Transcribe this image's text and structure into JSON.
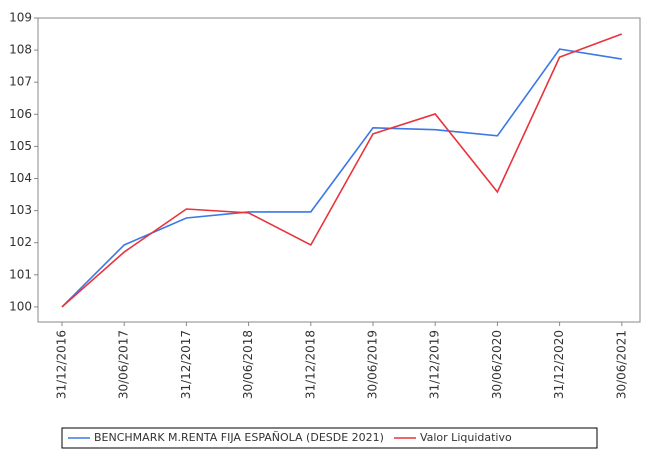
{
  "chart_data": {
    "type": "line",
    "categories": [
      "31/12/2016",
      "30/06/2017",
      "31/12/2017",
      "30/06/2018",
      "31/12/2018",
      "30/06/2019",
      "31/12/2019",
      "30/06/2020",
      "31/12/2020",
      "30/06/2021"
    ],
    "series": [
      {
        "name": "BENCHMARK M.RENTA FIJA ESPAÑOLA (DESDE 2021)",
        "color": "#3c78e6",
        "values": [
          100,
          101.93,
          102.77,
          102.96,
          102.96,
          105.58,
          105.52,
          105.33,
          108.03,
          107.72
        ]
      },
      {
        "name": "Valor Liquidativo",
        "color": "#e8323c",
        "values": [
          100,
          101.71,
          103.05,
          102.93,
          101.93,
          105.39,
          106.01,
          103.58,
          107.78,
          108.5
        ]
      }
    ],
    "ylim": [
      99.53,
      109
    ],
    "yticks": [
      100,
      101,
      102,
      103,
      104,
      105,
      106,
      107,
      108,
      109
    ]
  }
}
